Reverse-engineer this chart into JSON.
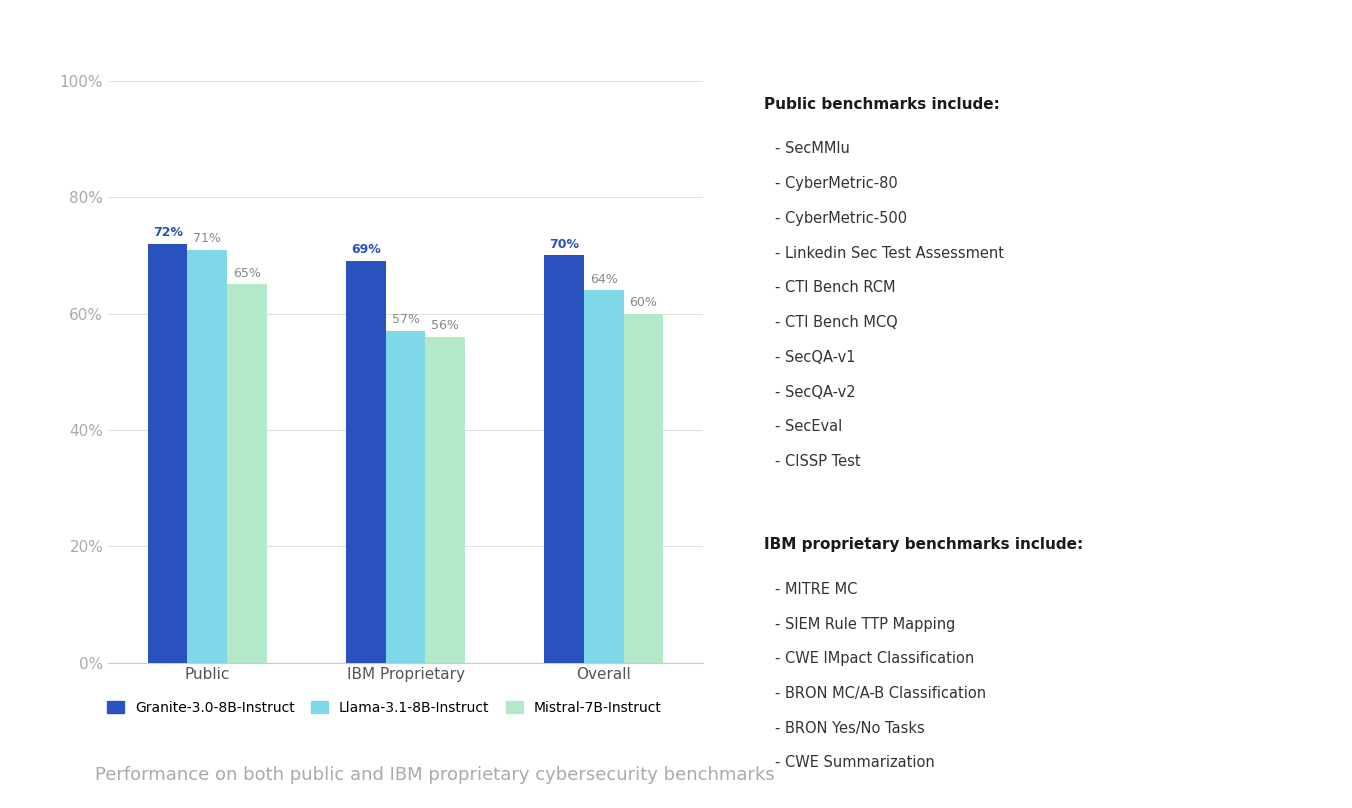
{
  "categories": [
    "Public",
    "IBM Proprietary",
    "Overall"
  ],
  "series": [
    {
      "name": "Granite-3.0-8B-Instruct",
      "values": [
        72,
        69,
        70
      ],
      "color": "#2a52be",
      "label_color": "#2a52be",
      "bold": true
    },
    {
      "name": "Llama-3.1-8B-Instruct",
      "values": [
        71,
        57,
        64
      ],
      "color": "#7fd8e8",
      "label_color": "#888888",
      "bold": false
    },
    {
      "name": "Mistral-7B-Instruct",
      "values": [
        65,
        56,
        60
      ],
      "color": "#b3e8c8",
      "label_color": "#888888",
      "bold": false
    }
  ],
  "ylim": [
    0,
    100
  ],
  "yticks": [
    0,
    20,
    40,
    60,
    80,
    100
  ],
  "ytick_labels": [
    "0%",
    "20%",
    "40%",
    "60%",
    "80%",
    "100%"
  ],
  "background_color": "#ffffff",
  "grid_color": "#e0e0e0",
  "bar_width": 0.2,
  "caption": "Performance on both public and IBM proprietary cybersecurity benchmarks",
  "public_benchmarks_title": "Public benchmarks include:",
  "public_benchmarks": [
    "- SecMMlu",
    "- CyberMetric-80",
    "- CyberMetric-500",
    "- Linkedin Sec Test Assessment",
    "- CTI Bench RCM",
    "- CTI Bench MCQ",
    "- SecQA-v1",
    "- SecQA-v2",
    "- SecEval",
    "- CISSP Test"
  ],
  "ibm_benchmarks_title": "IBM proprietary benchmarks include:",
  "ibm_benchmarks": [
    "- MITRE MC",
    "- SIEM Rule TTP Mapping",
    "- CWE IMpact Classification",
    "- BRON MC/A-B Classification",
    "- BRON Yes/No Tasks",
    "- CWE Summarization"
  ]
}
